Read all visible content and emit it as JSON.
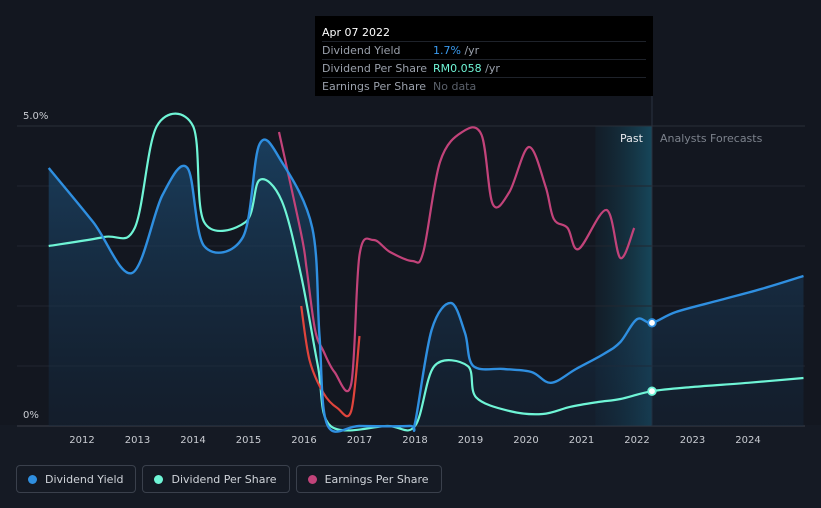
{
  "colors": {
    "dividend_yield": "#2f8fe0",
    "dividend_per_share": "#6ff5d6",
    "earnings_per_share": "#c2437a",
    "eps_negative": "#e0443c",
    "background": "#151a24"
  },
  "tooltip": {
    "date": "Apr 07 2022",
    "rows": [
      {
        "label": "Dividend Yield",
        "value": "1.7%",
        "unit": "/yr"
      },
      {
        "label": "Dividend Per Share",
        "value": "RM0.058",
        "unit": "/yr"
      },
      {
        "label": "Earnings Per Share",
        "value": "No data",
        "unit": ""
      }
    ]
  },
  "legend": [
    {
      "label": "Dividend Yield"
    },
    {
      "label": "Dividend Per Share"
    },
    {
      "label": "Earnings Per Share"
    }
  ],
  "chart_data": {
    "type": "line",
    "title": "",
    "xlabel": "",
    "ylabel": "",
    "xlim": [
      2011.3,
      2025.0
    ],
    "ylim": [
      0,
      5.0
    ],
    "y_tick_labels": [
      "5.0%",
      "0%"
    ],
    "x_tick_labels": [
      "2012",
      "2013",
      "2014",
      "2015",
      "2016",
      "2017",
      "2018",
      "2019",
      "2020",
      "2021",
      "2022",
      "2023",
      "2024"
    ],
    "region_labels": {
      "past": "Past",
      "forecast": "Analysts Forecasts"
    },
    "past_band": [
      2021.25,
      2022.27
    ],
    "series": [
      {
        "name": "Dividend Yield",
        "key": "dividend_yield",
        "points": [
          [
            2011.4,
            4.3
          ],
          [
            2012.2,
            3.4
          ],
          [
            2012.9,
            2.55
          ],
          [
            2013.45,
            3.85
          ],
          [
            2013.9,
            4.3
          ],
          [
            2014.2,
            3.0
          ],
          [
            2014.9,
            3.15
          ],
          [
            2015.2,
            4.7
          ],
          [
            2015.6,
            4.4
          ],
          [
            2016.15,
            3.3
          ],
          [
            2016.28,
            1.5
          ],
          [
            2016.42,
            0.02
          ],
          [
            2017.0,
            0.0
          ],
          [
            2017.9,
            0.0
          ],
          [
            2018.0,
            0.05
          ],
          [
            2018.3,
            1.6
          ],
          [
            2018.65,
            2.05
          ],
          [
            2018.9,
            1.55
          ],
          [
            2019.05,
            1.0
          ],
          [
            2019.6,
            0.95
          ],
          [
            2020.1,
            0.9
          ],
          [
            2020.45,
            0.72
          ],
          [
            2020.9,
            0.95
          ],
          [
            2021.4,
            1.2
          ],
          [
            2021.7,
            1.4
          ],
          [
            2022.0,
            1.78
          ],
          [
            2022.27,
            1.72
          ],
          [
            2022.7,
            1.9
          ],
          [
            2023.5,
            2.1
          ],
          [
            2024.3,
            2.3
          ],
          [
            2025.0,
            2.5
          ]
        ]
      },
      {
        "name": "Dividend Per Share",
        "key": "dividend_per_share",
        "points": [
          [
            2011.4,
            3.0
          ],
          [
            2012.4,
            3.15
          ],
          [
            2012.95,
            3.3
          ],
          [
            2013.35,
            5.0
          ],
          [
            2014.0,
            5.0
          ],
          [
            2014.2,
            3.4
          ],
          [
            2014.95,
            3.4
          ],
          [
            2015.2,
            4.1
          ],
          [
            2015.6,
            3.75
          ],
          [
            2015.95,
            2.5
          ],
          [
            2016.25,
            1.0
          ],
          [
            2016.48,
            0.0
          ],
          [
            2017.5,
            0.0
          ],
          [
            2018.0,
            0.0
          ],
          [
            2018.35,
            1.0
          ],
          [
            2018.95,
            1.0
          ],
          [
            2019.1,
            0.48
          ],
          [
            2019.7,
            0.25
          ],
          [
            2020.3,
            0.2
          ],
          [
            2020.8,
            0.32
          ],
          [
            2021.3,
            0.4
          ],
          [
            2021.7,
            0.45
          ],
          [
            2022.27,
            0.58
          ],
          [
            2023.0,
            0.65
          ],
          [
            2024.0,
            0.72
          ],
          [
            2025.0,
            0.8
          ]
        ]
      },
      {
        "name": "Earnings Per Share",
        "key": "earnings_per_share",
        "points": [
          [
            2015.55,
            4.9
          ],
          [
            2015.95,
            3.2
          ],
          [
            2016.05,
            2.6
          ],
          [
            2016.2,
            1.6
          ],
          [
            2016.35,
            1.25
          ],
          [
            2016.55,
            0.9
          ],
          [
            2016.85,
            0.7
          ],
          [
            2017.0,
            2.85
          ],
          [
            2017.25,
            3.1
          ],
          [
            2017.55,
            2.9
          ],
          [
            2017.95,
            2.75
          ],
          [
            2018.15,
            2.9
          ],
          [
            2018.45,
            4.4
          ],
          [
            2018.85,
            4.9
          ],
          [
            2019.2,
            4.85
          ],
          [
            2019.4,
            3.7
          ],
          [
            2019.7,
            3.9
          ],
          [
            2020.05,
            4.65
          ],
          [
            2020.35,
            4.0
          ],
          [
            2020.5,
            3.45
          ],
          [
            2020.75,
            3.3
          ],
          [
            2020.95,
            2.95
          ],
          [
            2021.45,
            3.6
          ],
          [
            2021.7,
            2.8
          ],
          [
            2021.95,
            3.3
          ]
        ]
      }
    ],
    "eps_negative_segment": [
      [
        2015.95,
        2.0
      ],
      [
        2016.1,
        1.1
      ],
      [
        2016.35,
        0.55
      ],
      [
        2016.6,
        0.3
      ],
      [
        2016.85,
        0.25
      ],
      [
        2017.0,
        1.5
      ]
    ],
    "markers": [
      {
        "series": "dividend_yield",
        "x": 2022.27,
        "y": 1.72
      },
      {
        "series": "dividend_per_share",
        "x": 2022.27,
        "y": 0.58
      }
    ]
  }
}
